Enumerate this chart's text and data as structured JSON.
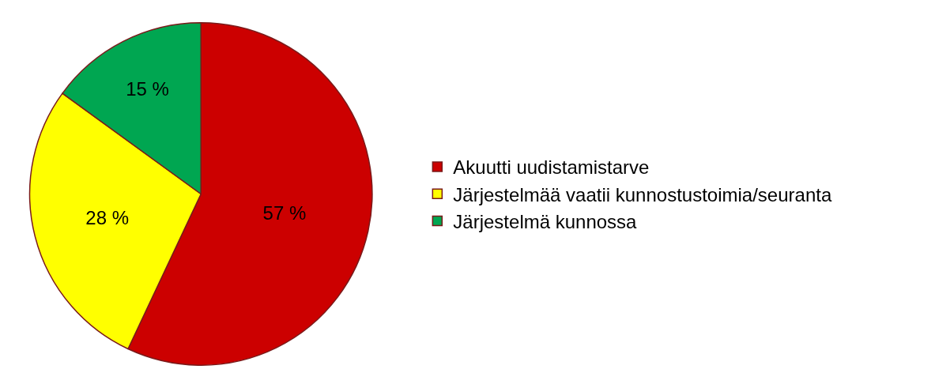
{
  "chart_data": {
    "type": "pie",
    "categories": [
      "Akuutti uudistamistarve",
      "Järjestelmää vaatii kunnostustoimia/seuranta",
      "Järjestelmä kunnossa"
    ],
    "values": [
      57,
      28,
      15
    ],
    "value_labels": [
      "57 %",
      "28 %",
      "15 %"
    ],
    "colors": [
      "#cc0000",
      "#ffff00",
      "#00a651"
    ],
    "legend": "right"
  }
}
